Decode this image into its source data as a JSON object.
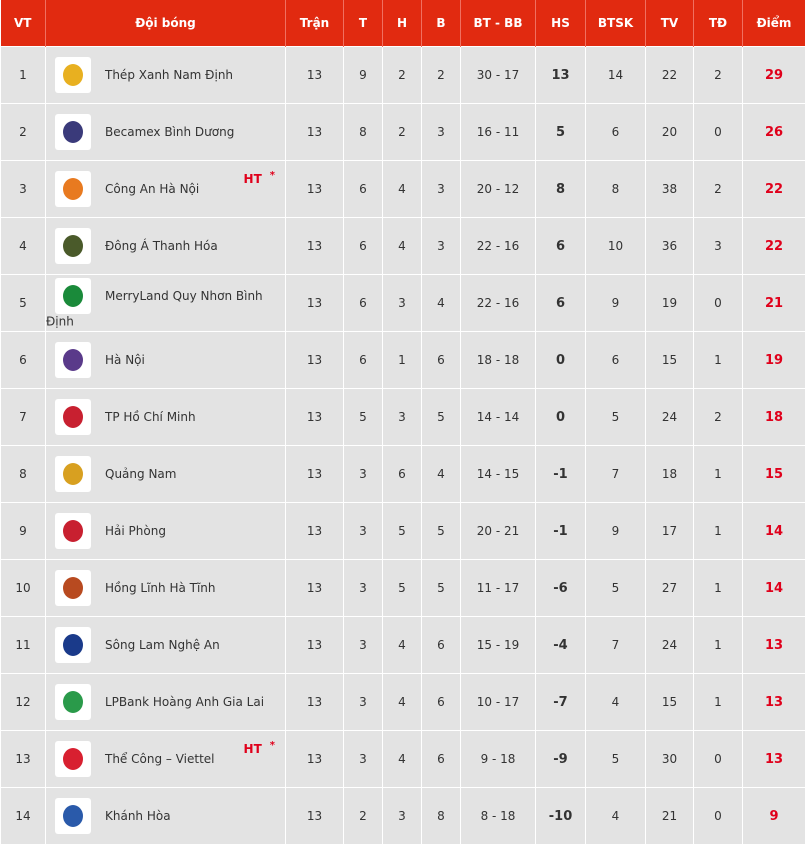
{
  "headers": [
    "VT",
    "Đội bóng",
    "Trận",
    "T",
    "H",
    "B",
    "BT - BB",
    "HS",
    "BTSK",
    "TV",
    "TĐ",
    "Điểm"
  ],
  "accent": "#e12a10",
  "rows": [
    {
      "vt": "1",
      "team": "Thép Xanh Nam Định",
      "tran": "13",
      "t": "9",
      "h": "2",
      "b": "2",
      "btbb": "30 - 17",
      "hs": "13",
      "btsk": "14",
      "tv": "22",
      "td": "2",
      "pts": "29",
      "color": "#e8b020"
    },
    {
      "vt": "2",
      "team": "Becamex Bình Dương",
      "tran": "13",
      "t": "8",
      "h": "2",
      "b": "3",
      "btbb": "16 - 11",
      "hs": "5",
      "btsk": "6",
      "tv": "20",
      "td": "0",
      "pts": "26",
      "color": "#3a3a7a"
    },
    {
      "vt": "3",
      "team": "Công An Hà Nội",
      "ht": "HT",
      "star": "*",
      "tran": "13",
      "t": "6",
      "h": "4",
      "b": "3",
      "btbb": "20 - 12",
      "hs": "8",
      "btsk": "8",
      "tv": "38",
      "td": "2",
      "pts": "22",
      "color": "#e87a20"
    },
    {
      "vt": "4",
      "team": "Đông Á Thanh Hóa",
      "tran": "13",
      "t": "6",
      "h": "4",
      "b": "3",
      "btbb": "22 - 16",
      "hs": "6",
      "btsk": "10",
      "tv": "36",
      "td": "3",
      "pts": "22",
      "color": "#4a5a2a"
    },
    {
      "vt": "5",
      "team": "MerryLand Quy Nhơn Bình Định",
      "tran": "13",
      "t": "6",
      "h": "3",
      "b": "4",
      "btbb": "22 - 16",
      "hs": "6",
      "btsk": "9",
      "tv": "19",
      "td": "0",
      "pts": "21",
      "color": "#1a8a3a"
    },
    {
      "vt": "6",
      "team": "Hà Nội",
      "tran": "13",
      "t": "6",
      "h": "1",
      "b": "6",
      "btbb": "18 - 18",
      "hs": "0",
      "btsk": "6",
      "tv": "15",
      "td": "1",
      "pts": "19",
      "color": "#5a3a8a"
    },
    {
      "vt": "7",
      "team": "TP Hồ Chí Minh",
      "tran": "13",
      "t": "5",
      "h": "3",
      "b": "5",
      "btbb": "14 - 14",
      "hs": "0",
      "btsk": "5",
      "tv": "24",
      "td": "2",
      "pts": "18",
      "color": "#c82030"
    },
    {
      "vt": "8",
      "team": "Quảng Nam",
      "tran": "13",
      "t": "3",
      "h": "6",
      "b": "4",
      "btbb": "14 - 15",
      "hs": "-1",
      "btsk": "7",
      "tv": "18",
      "td": "1",
      "pts": "15",
      "color": "#d8a020"
    },
    {
      "vt": "9",
      "team": "Hải Phòng",
      "tran": "13",
      "t": "3",
      "h": "5",
      "b": "5",
      "btbb": "20 - 21",
      "hs": "-1",
      "btsk": "9",
      "tv": "17",
      "td": "1",
      "pts": "14",
      "color": "#c82030"
    },
    {
      "vt": "10",
      "team": "Hồng Lĩnh Hà Tĩnh",
      "tran": "13",
      "t": "3",
      "h": "5",
      "b": "5",
      "btbb": "11 - 17",
      "hs": "-6",
      "btsk": "5",
      "tv": "27",
      "td": "1",
      "pts": "14",
      "color": "#b84a20"
    },
    {
      "vt": "11",
      "team": "Sông Lam Nghệ An",
      "tran": "13",
      "t": "3",
      "h": "4",
      "b": "6",
      "btbb": "15 - 19",
      "hs": "-4",
      "btsk": "7",
      "tv": "24",
      "td": "1",
      "pts": "13",
      "color": "#1a3a8a"
    },
    {
      "vt": "12",
      "team": "LPBank Hoàng Anh Gia Lai",
      "tran": "13",
      "t": "3",
      "h": "4",
      "b": "6",
      "btbb": "10 - 17",
      "hs": "-7",
      "btsk": "4",
      "tv": "15",
      "td": "1",
      "pts": "13",
      "color": "#2a9a4a"
    },
    {
      "vt": "13",
      "team": "Thể Công – Viettel",
      "ht": "HT",
      "star": "*",
      "tran": "13",
      "t": "3",
      "h": "4",
      "b": "6",
      "btbb": "9 - 18",
      "hs": "-9",
      "btsk": "5",
      "tv": "30",
      "td": "0",
      "pts": "13",
      "color": "#d82030"
    },
    {
      "vt": "14",
      "team": "Khánh Hòa",
      "tran": "13",
      "t": "2",
      "h": "3",
      "b": "8",
      "btbb": "8 - 18",
      "hs": "-10",
      "btsk": "4",
      "tv": "21",
      "td": "0",
      "pts": "9",
      "color": "#2a5aaa"
    }
  ]
}
